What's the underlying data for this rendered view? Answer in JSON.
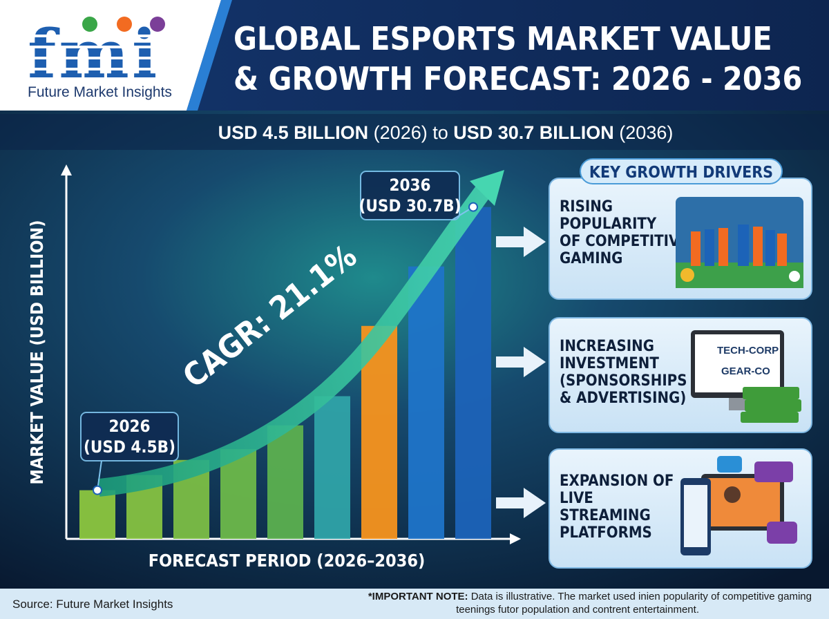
{
  "logo": {
    "mark": "fmi",
    "brand": "Future Market Insights"
  },
  "chart_data": {
    "type": "bar",
    "title": [
      "GLOBAL ESPORTS MARKET VALUE",
      "& GROWTH FORECAST: 2026 - 2036"
    ],
    "subtitle": [
      "USD 4.5 BILLION",
      " (2026) to ",
      "USD 30.7 BILLION",
      " (2036)"
    ],
    "y_label": "MARKET VALUE (USD BILLION)",
    "x_label": "FORECAST PERIOD (2026–2036)",
    "values": [
      4.5,
      5.9,
      7.3,
      8.3,
      10.5,
      13.2,
      19.7,
      25.2,
      30.7
    ],
    "colors": [
      "#8cc63f",
      "#86c241",
      "#7cbe45",
      "#6db84a",
      "#5cb04f",
      "#2fa3a8",
      "#f7941d",
      "#1f74c8",
      "#1c63b8"
    ],
    "ylim": [
      0,
      34
    ],
    "annotations": [
      {
        "label": "2026",
        "value_label": "(USD 4.5B)"
      },
      {
        "label": "2036",
        "value_label": "(USD 30.7B)"
      }
    ],
    "cagr": "CAGR: 21.1%"
  },
  "drivers": {
    "title": "KEY GROWTH DRIVERS",
    "items": [
      [
        "RISING",
        "POPULARITY",
        "OF COMPETITIVE",
        "GAMING"
      ],
      [
        "INCREASING",
        "INVESTMENT",
        "(SPONSORSHIPS",
        "& ADVERTISING)"
      ],
      [
        "EXPANSION OF",
        "LIVE",
        "STREAMING",
        "PLATFORMS"
      ]
    ],
    "sponsors": [
      "TECH-CORP",
      "GEAR-CO"
    ]
  },
  "footer": {
    "source": "Source: Future Market Insights",
    "note_label": "*IMPORTANT NOTE:",
    "note": [
      "Data is illustrative. The market used inien popularity of competitive gaming",
      "teenings futor population and contrent entertainment."
    ]
  }
}
